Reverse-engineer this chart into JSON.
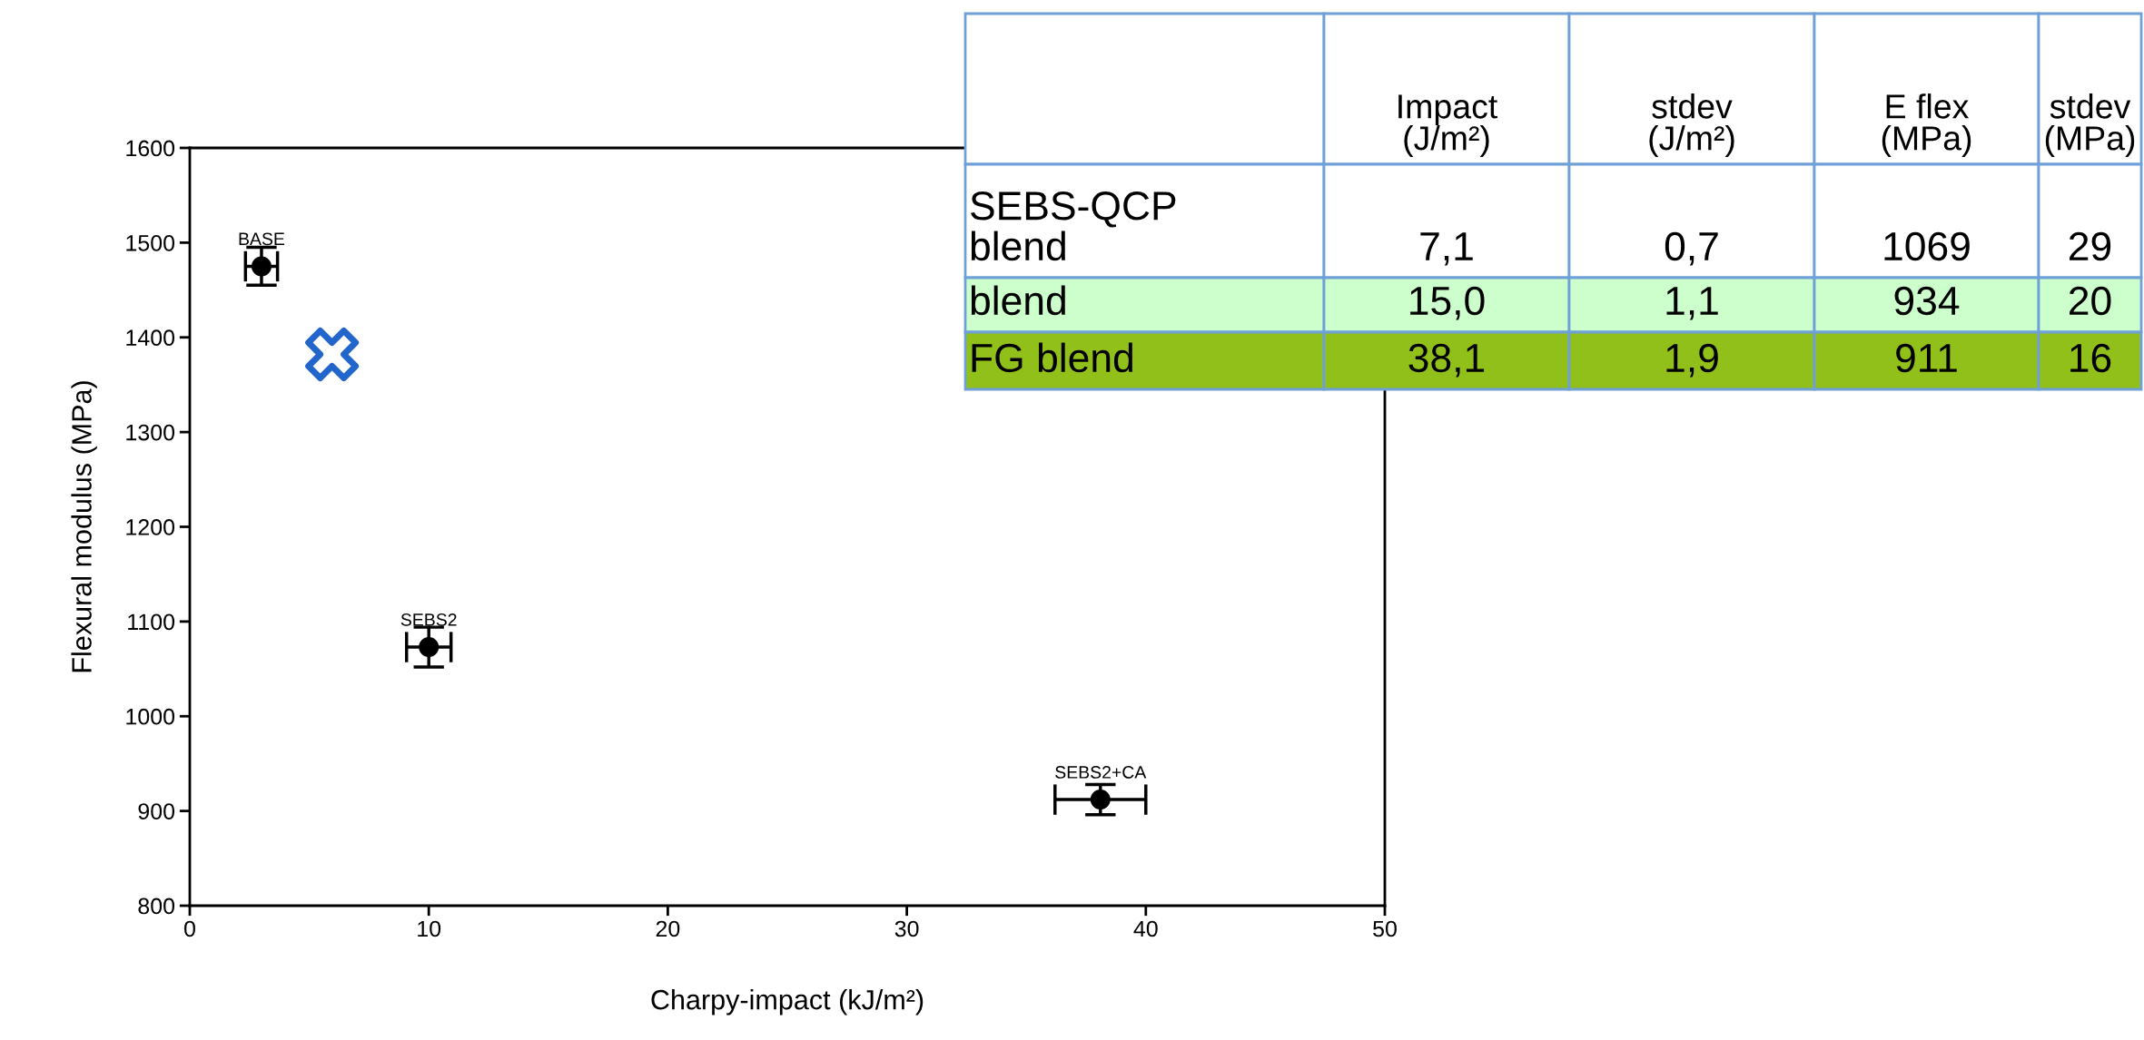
{
  "chart_data": [
    {
      "type": "scatter",
      "xlabel": "Charpy-impact (kJ/m²)",
      "ylabel": "Flexural modulus (MPa)",
      "xlim": [
        0,
        50
      ],
      "ylim": [
        800,
        1600
      ],
      "xticks": [
        0,
        10,
        20,
        30,
        40,
        50
      ],
      "yticks": [
        800,
        900,
        1000,
        1100,
        1200,
        1300,
        1400,
        1500,
        1600
      ],
      "grid": false,
      "series": [
        {
          "color": "#000000",
          "marker": "circle",
          "x": [
            3.0,
            10.0,
            38.1
          ],
          "values": [
            1475,
            1073,
            912
          ],
          "errors": [
            20,
            21,
            16
          ],
          "xerrors": [
            0.67,
            0.93,
            1.9
          ]
        },
        {
          "color": "#2266cc",
          "marker": "cross",
          "x": [
            5.95
          ],
          "values": [
            1382
          ]
        }
      ],
      "annotations": [
        {
          "text": "BASE",
          "x": 3.0,
          "y": 1475
        },
        {
          "text": "SEBS2",
          "x": 10.0,
          "y": 1073
        },
        {
          "text": "SEBS2+CA",
          "x": 38.1,
          "y": 912
        }
      ]
    },
    {
      "type": "other",
      "categories": [
        null,
        "Impact\n(J/m²)",
        "stdev\n(J/m²)",
        "E flex\n(MPa)",
        "stdev\n(MPa)"
      ],
      "y_categories": [
        "SEBS-QCP\nblend",
        "blend",
        "FG blend"
      ],
      "cell_labels": [
        [
          "7,1",
          "0,7",
          "1069",
          "29"
        ],
        [
          "15,0",
          "1,1",
          "934",
          "20"
        ],
        [
          "38,1",
          "1,9",
          "911",
          "16"
        ]
      ]
    }
  ]
}
